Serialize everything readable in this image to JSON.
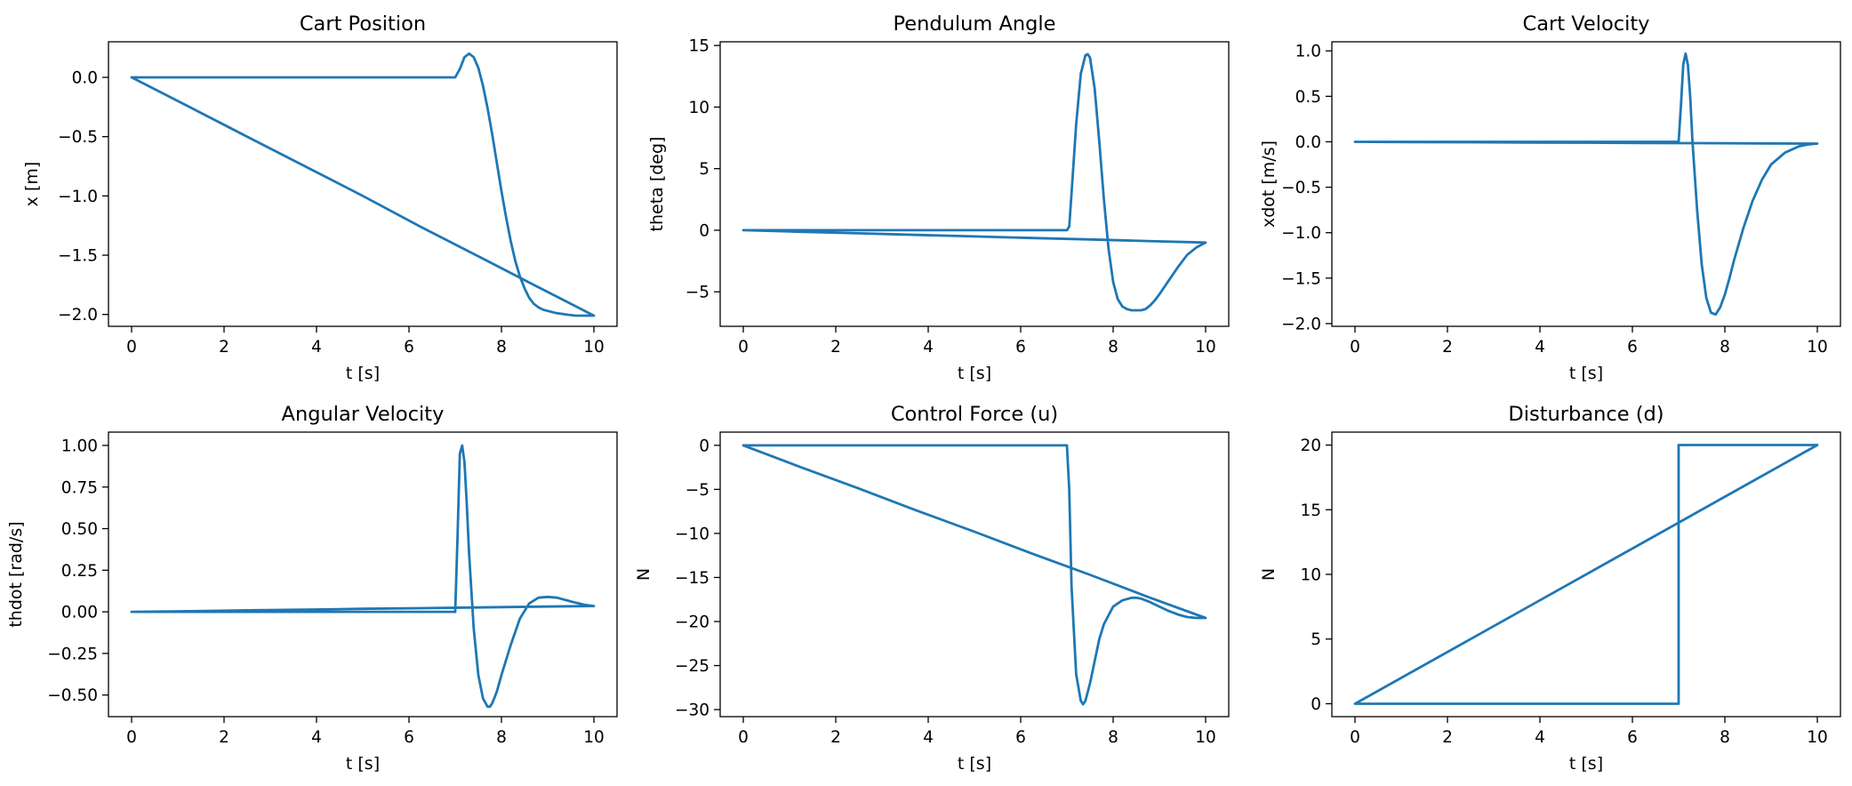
{
  "figure": {
    "line_color": "#1f77b4"
  },
  "chart_data": [
    {
      "type": "line",
      "title": "Cart Position",
      "xlabel": "t [s]",
      "ylabel": "x [m]",
      "xlim": [
        -0.5,
        10.5
      ],
      "ylim": [
        -2.1,
        0.3
      ],
      "xticks": [
        0,
        2,
        4,
        6,
        8,
        10
      ],
      "xtick_labels": [
        "0",
        "2",
        "4",
        "6",
        "8",
        "10"
      ],
      "yticks": [
        0.0,
        -0.5,
        -1.0,
        -1.5,
        -2.0
      ],
      "ytick_labels": [
        "0.0",
        "−0.5",
        "−1.0",
        "−1.5",
        "−2.0"
      ],
      "grid": false,
      "series": [
        {
          "x": [
            0,
            1,
            2,
            3,
            4,
            5,
            6,
            7.0,
            7.1,
            7.2,
            7.3,
            7.4,
            7.5,
            7.6,
            7.7,
            7.8,
            7.9,
            8.0,
            8.1,
            8.2,
            8.3,
            8.4,
            8.5,
            8.6,
            8.7,
            8.8,
            8.9,
            9.0,
            9.2,
            9.4,
            9.6,
            9.8,
            10.0,
            8.75,
            7.5,
            6.25,
            5.0,
            3.75,
            2.5,
            1.25,
            0.0
          ],
          "y": [
            0.0,
            0.0,
            0.0,
            0.0,
            0.0,
            0.0,
            0.0,
            0.0,
            0.07,
            0.17,
            0.2,
            0.17,
            0.08,
            -0.07,
            -0.26,
            -0.48,
            -0.72,
            -0.96,
            -1.18,
            -1.38,
            -1.55,
            -1.68,
            -1.78,
            -1.86,
            -1.91,
            -1.94,
            -1.96,
            -1.97,
            -1.99,
            -2.0,
            -2.01,
            -2.01,
            -2.01,
            -1.76,
            -1.51,
            -1.26,
            -1.0,
            -0.75,
            -0.5,
            -0.25,
            0.0
          ]
        }
      ]
    },
    {
      "type": "line",
      "title": "Pendulum Angle",
      "xlabel": "t [s]",
      "ylabel": "theta [deg]",
      "xlim": [
        -0.5,
        10.5
      ],
      "ylim": [
        -7.8,
        15.3
      ],
      "xticks": [
        0,
        2,
        4,
        6,
        8,
        10
      ],
      "xtick_labels": [
        "0",
        "2",
        "4",
        "6",
        "8",
        "10"
      ],
      "yticks": [
        15,
        10,
        5,
        0,
        -5
      ],
      "ytick_labels": [
        "15",
        "10",
        "5",
        "0",
        "−5"
      ],
      "grid": false,
      "series": [
        {
          "x": [
            0,
            1,
            2,
            3,
            4,
            5,
            6,
            7.0,
            7.05,
            7.1,
            7.2,
            7.3,
            7.4,
            7.45,
            7.5,
            7.6,
            7.7,
            7.8,
            7.9,
            8.0,
            8.1,
            8.2,
            8.3,
            8.4,
            8.5,
            8.6,
            8.7,
            8.8,
            8.9,
            9.0,
            9.2,
            9.4,
            9.6,
            9.8,
            10.0,
            8.75,
            7.5,
            6.25,
            5.0,
            3.75,
            2.5,
            1.25,
            0.0
          ],
          "y": [
            0.0,
            0.0,
            0.0,
            0.0,
            0.0,
            0.0,
            0.0,
            0.0,
            0.3,
            3.0,
            8.6,
            12.7,
            14.2,
            14.3,
            14.0,
            11.5,
            7.2,
            2.5,
            -1.5,
            -4.2,
            -5.6,
            -6.2,
            -6.4,
            -6.5,
            -6.5,
            -6.5,
            -6.4,
            -6.1,
            -5.7,
            -5.2,
            -4.1,
            -3.0,
            -2.0,
            -1.4,
            -1.0,
            -0.88,
            -0.75,
            -0.63,
            -0.5,
            -0.38,
            -0.25,
            -0.13,
            0.0
          ]
        }
      ]
    },
    {
      "type": "line",
      "title": "Cart Velocity",
      "xlabel": "t [s]",
      "ylabel": "xdot [m/s]",
      "xlim": [
        -0.5,
        10.5
      ],
      "ylim": [
        -2.03,
        1.1
      ],
      "xticks": [
        0,
        2,
        4,
        6,
        8,
        10
      ],
      "xtick_labels": [
        "0",
        "2",
        "4",
        "6",
        "8",
        "10"
      ],
      "yticks": [
        1.0,
        0.5,
        0.0,
        -0.5,
        -1.0,
        -1.5,
        -2.0
      ],
      "ytick_labels": [
        "1.0",
        "0.5",
        "0.0",
        "−0.5",
        "−1.0",
        "−1.5",
        "−2.0"
      ],
      "grid": false,
      "series": [
        {
          "x": [
            0,
            1,
            2,
            3,
            4,
            5,
            6,
            7.0,
            7.05,
            7.1,
            7.15,
            7.2,
            7.25,
            7.3,
            7.4,
            7.5,
            7.6,
            7.7,
            7.8,
            7.9,
            8.0,
            8.1,
            8.2,
            8.4,
            8.6,
            8.8,
            9.0,
            9.3,
            9.6,
            9.8,
            10.0,
            8.75,
            7.5,
            6.25,
            5.0,
            3.75,
            2.5,
            1.25,
            0.0
          ],
          "y": [
            0.0,
            0.0,
            0.0,
            0.0,
            0.0,
            0.0,
            0.0,
            0.0,
            0.4,
            0.85,
            0.97,
            0.85,
            0.5,
            0.0,
            -0.75,
            -1.35,
            -1.72,
            -1.88,
            -1.9,
            -1.82,
            -1.68,
            -1.5,
            -1.3,
            -0.95,
            -0.65,
            -0.42,
            -0.25,
            -0.12,
            -0.05,
            -0.03,
            -0.02,
            -0.018,
            -0.015,
            -0.013,
            -0.01,
            -0.008,
            -0.005,
            -0.003,
            0.0
          ]
        }
      ]
    },
    {
      "type": "line",
      "title": "Angular Velocity",
      "xlabel": "t [s]",
      "ylabel": "thdot [rad/s]",
      "xlim": [
        -0.5,
        10.5
      ],
      "ylim": [
        -0.63,
        1.08
      ],
      "xticks": [
        0,
        2,
        4,
        6,
        8,
        10
      ],
      "xtick_labels": [
        "0",
        "2",
        "4",
        "6",
        "8",
        "10"
      ],
      "yticks": [
        1.0,
        0.75,
        0.5,
        0.25,
        0.0,
        -0.25,
        -0.5
      ],
      "ytick_labels": [
        "1.00",
        "0.75",
        "0.50",
        "0.25",
        "0.00",
        "−0.25",
        "−0.50"
      ],
      "grid": false,
      "series": [
        {
          "x": [
            0,
            1,
            2,
            3,
            4,
            5,
            6,
            7.0,
            7.05,
            7.1,
            7.15,
            7.2,
            7.25,
            7.3,
            7.4,
            7.5,
            7.6,
            7.7,
            7.75,
            7.8,
            7.9,
            8.0,
            8.2,
            8.4,
            8.6,
            8.8,
            9.0,
            9.2,
            9.4,
            9.6,
            9.8,
            10.0,
            8.75,
            7.5,
            6.25,
            5.0,
            3.75,
            2.5,
            1.25,
            0.0
          ],
          "y": [
            0.0,
            0.0,
            0.0,
            0.0,
            0.0,
            0.0,
            0.0,
            0.0,
            0.45,
            0.95,
            1.0,
            0.9,
            0.65,
            0.35,
            -0.1,
            -0.38,
            -0.52,
            -0.57,
            -0.57,
            -0.55,
            -0.48,
            -0.38,
            -0.2,
            -0.04,
            0.05,
            0.085,
            0.09,
            0.085,
            0.07,
            0.055,
            0.042,
            0.035,
            0.031,
            0.026,
            0.022,
            0.018,
            0.013,
            0.009,
            0.004,
            0.0
          ]
        }
      ]
    },
    {
      "type": "line",
      "title": "Control Force (u)",
      "xlabel": "t [s]",
      "ylabel": "N",
      "xlim": [
        -0.5,
        10.5
      ],
      "ylim": [
        -30.8,
        1.5
      ],
      "xticks": [
        0,
        2,
        4,
        6,
        8,
        10
      ],
      "xtick_labels": [
        "0",
        "2",
        "4",
        "6",
        "8",
        "10"
      ],
      "yticks": [
        0,
        -5,
        -10,
        -15,
        -20,
        -25,
        -30
      ],
      "ytick_labels": [
        "0",
        "−5",
        "−10",
        "−15",
        "−20",
        "−25",
        "−30"
      ],
      "grid": false,
      "series": [
        {
          "x": [
            0,
            1,
            2,
            3,
            4,
            5,
            6,
            7.0,
            7.05,
            7.1,
            7.2,
            7.3,
            7.35,
            7.4,
            7.5,
            7.6,
            7.7,
            7.8,
            8.0,
            8.2,
            8.4,
            8.5,
            8.6,
            8.8,
            9.0,
            9.2,
            9.4,
            9.6,
            9.8,
            10.0,
            8.75,
            7.5,
            6.25,
            5.0,
            3.75,
            2.5,
            1.25,
            0.0
          ],
          "y": [
            0.0,
            0.0,
            0.0,
            0.0,
            0.0,
            0.0,
            0.0,
            0.0,
            -5.0,
            -16.0,
            -26.0,
            -29.0,
            -29.4,
            -29.0,
            -27.0,
            -24.5,
            -22.0,
            -20.3,
            -18.3,
            -17.6,
            -17.3,
            -17.3,
            -17.4,
            -17.8,
            -18.3,
            -18.8,
            -19.2,
            -19.5,
            -19.6,
            -19.6,
            -17.2,
            -14.7,
            -12.3,
            -9.8,
            -7.4,
            -4.9,
            -2.5,
            0.0
          ]
        }
      ]
    },
    {
      "type": "line",
      "title": "Disturbance (d)",
      "xlabel": "t [s]",
      "ylabel": "N",
      "xlim": [
        -0.5,
        10.5
      ],
      "ylim": [
        -1.0,
        21.0
      ],
      "xticks": [
        0,
        2,
        4,
        6,
        8,
        10
      ],
      "xtick_labels": [
        "0",
        "2",
        "4",
        "6",
        "8",
        "10"
      ],
      "yticks": [
        20,
        15,
        10,
        5,
        0
      ],
      "ytick_labels": [
        "20",
        "15",
        "10",
        "5",
        "0"
      ],
      "grid": false,
      "series": [
        {
          "x": [
            0,
            7.0,
            7.0,
            10.0,
            0.0
          ],
          "y": [
            0,
            0,
            20,
            20,
            0
          ]
        }
      ]
    }
  ]
}
